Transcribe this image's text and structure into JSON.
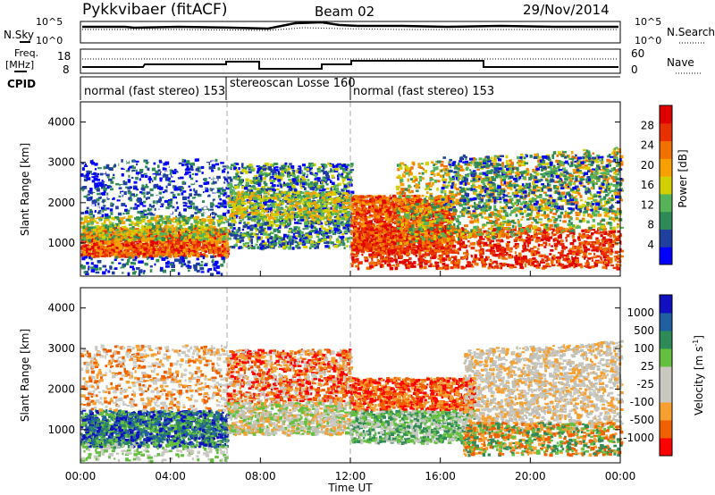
{
  "header": {
    "station": "Pykkvibaer (fitACF)",
    "beam": "Beam 02",
    "date": "29/Nov/2014"
  },
  "panel_labels": {
    "nsky": "N.Sky",
    "nsearch": "N.Search",
    "freq": "Freq.",
    "freq_unit": "[MHz]",
    "nave": "Nave",
    "cpid": "CPID"
  },
  "noise_ticks": {
    "left_top": "10^5",
    "left_bottom": "10^0",
    "right_top": "10^5",
    "right_bottom": "10^0"
  },
  "freq_ticks": {
    "left_top": "18",
    "left_bottom": "8",
    "right_top": "60",
    "right_bottom": "0"
  },
  "cpid_segments": [
    {
      "label": "normal (fast stereo) 153"
    },
    {
      "label": "stereoscan Losse 160"
    },
    {
      "label": "normal (fast stereo) 153"
    }
  ],
  "colors": {
    "power": [
      "#0000ff",
      "#2040a0",
      "#2e8b57",
      "#57b35a",
      "#d4d000",
      "#f7a000",
      "#f07000",
      "#e83000",
      "#e00000"
    ],
    "velocity": [
      "#ff0000",
      "#f06000",
      "#f7a030",
      "#c8c8c0",
      "#c8c8c0",
      "#66c040",
      "#2e8b57",
      "#2060a0",
      "#1010c0"
    ]
  },
  "chart_data": [
    {
      "type": "heatmap",
      "quantity": "power",
      "xlabel": "",
      "ylabel": "Slant Range [km]",
      "yticks": [
        "1000",
        "2000",
        "3000",
        "4000"
      ],
      "ylim": [
        180,
        4500
      ],
      "xlim": [
        0,
        24
      ],
      "colorbar_label": "Power [dB]",
      "colorbar_ticks": [
        "4",
        "8",
        "12",
        "16",
        "20",
        "24",
        "28"
      ],
      "regions": [
        {
          "t0": 0,
          "t1": 6.5,
          "r0": 600,
          "r1": 1400,
          "level": "high"
        },
        {
          "t0": 0,
          "t1": 6.5,
          "r0": 1400,
          "r1": 3100,
          "level": "low-scattered"
        },
        {
          "t0": 6.5,
          "t1": 12,
          "r0": 800,
          "r1": 3000,
          "level": "mixed"
        },
        {
          "t0": 12,
          "t1": 24,
          "r0": 400,
          "r1": 2900,
          "level": "high-mid"
        }
      ]
    },
    {
      "type": "heatmap",
      "quantity": "velocity",
      "xlabel": "Time UT",
      "ylabel": "Slant Range [km]",
      "xticks": [
        "00:00",
        "04:00",
        "08:00",
        "12:00",
        "16:00",
        "20:00",
        "00:00"
      ],
      "yticks": [
        "1000",
        "2000",
        "3000",
        "4000"
      ],
      "ylim": [
        180,
        4500
      ],
      "xlim": [
        0,
        24
      ],
      "colorbar_label": "Velocity [m s-1]",
      "colorbar_ticks": [
        "1000",
        "500",
        "100",
        "25",
        "-25",
        "-100",
        "-500",
        "-1000"
      ],
      "regions": [
        {
          "t0": 0,
          "t1": 6.5,
          "r0": 600,
          "r1": 1500,
          "value": "positive"
        },
        {
          "t0": 6.5,
          "t1": 12,
          "r0": 1500,
          "r1": 3000,
          "value": "negative"
        },
        {
          "t0": 12,
          "t1": 24,
          "r0": 400,
          "r1": 2900,
          "value": "near-zero"
        }
      ]
    }
  ]
}
